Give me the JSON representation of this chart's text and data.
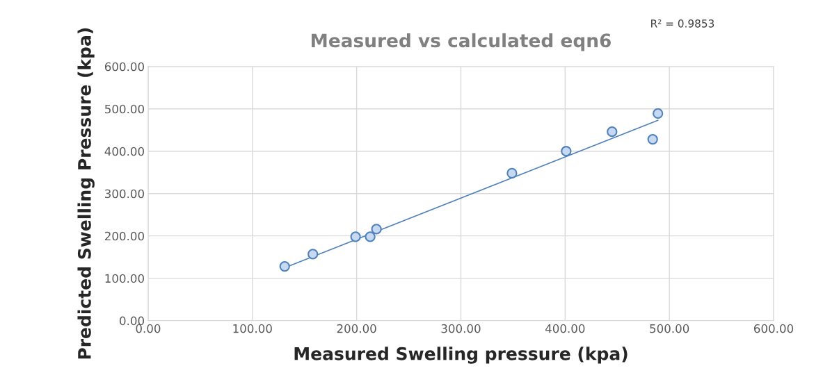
{
  "chart_data": {
    "type": "scatter",
    "title": "Measured vs calculated eqn6",
    "xlabel": "Measured Swelling pressure (kpa)",
    "ylabel": "Predicted Swelling Pressure (kpa)",
    "annotations": [
      "R² = 0.9853"
    ],
    "series": [
      {
        "color": "#4f81bd",
        "marker": "circle",
        "x": [
          131,
          158,
          199,
          213,
          219,
          349,
          401,
          445,
          484,
          489
        ],
        "values": [
          128,
          157,
          198,
          198,
          216,
          348,
          400,
          446,
          428,
          489
        ]
      },
      {
        "type": "line",
        "color": "#4f81bd",
        "line_style": "solid",
        "x": [
          131,
          489
        ],
        "values": [
          125,
          473
        ]
      }
    ],
    "xlim": [
      0,
      600
    ],
    "ylim": [
      0,
      600
    ],
    "xticks": [
      {
        "value": 0,
        "label": "0.00"
      },
      {
        "value": 100,
        "label": "100.00"
      },
      {
        "value": 200,
        "label": "200.00"
      },
      {
        "value": 300,
        "label": "300.00"
      },
      {
        "value": 400,
        "label": "400.00"
      },
      {
        "value": 500,
        "label": "500.00"
      },
      {
        "value": 600,
        "label": "600.00"
      }
    ],
    "yticks": [
      {
        "value": 0,
        "label": "0.00"
      },
      {
        "value": 100,
        "label": "100.00"
      },
      {
        "value": 200,
        "label": "200.00"
      },
      {
        "value": 300,
        "label": "300.00"
      },
      {
        "value": 400,
        "label": "400.00"
      },
      {
        "value": 500,
        "label": "500.00"
      },
      {
        "value": 600,
        "label": "600.00"
      }
    ],
    "grid": true
  }
}
